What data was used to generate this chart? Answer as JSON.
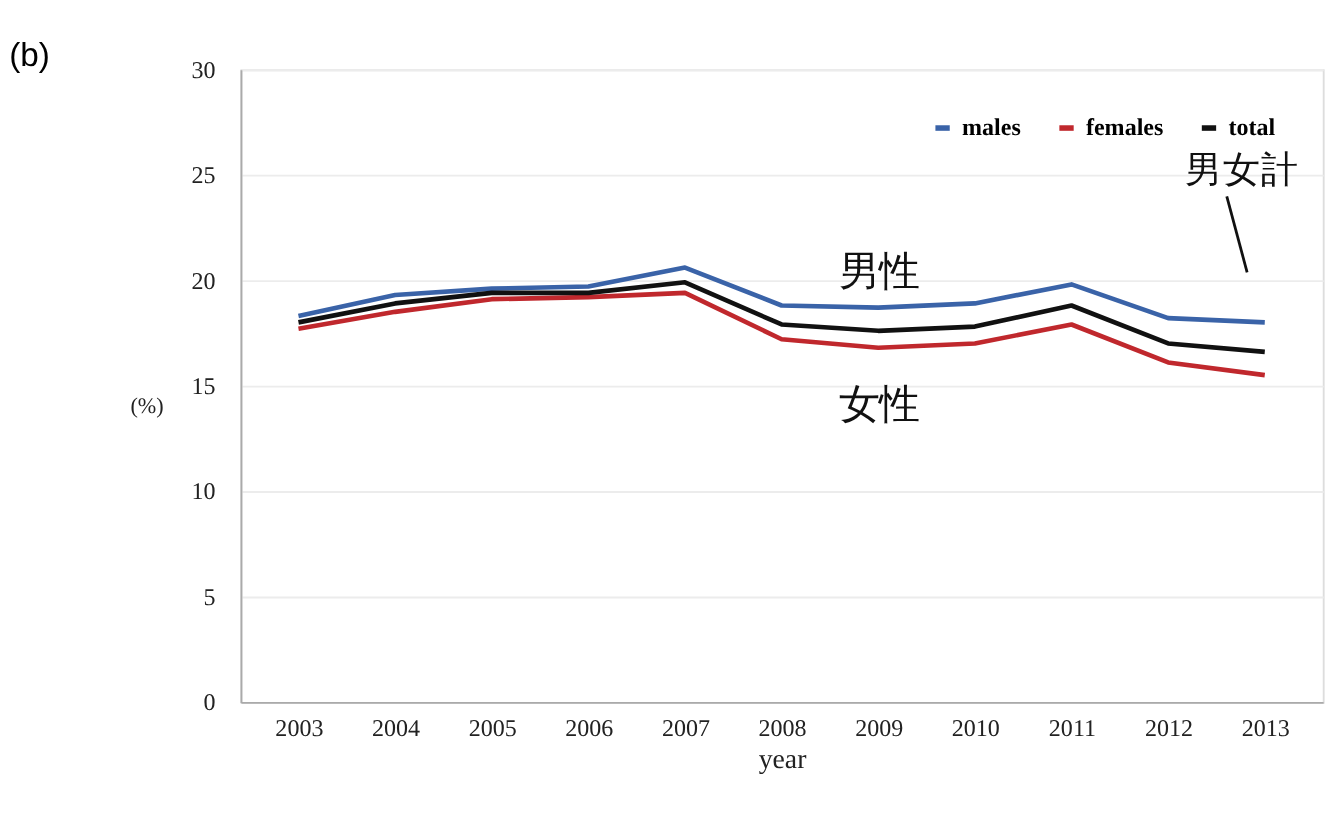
{
  "chart_data": {
    "type": "line",
    "title": "(b)",
    "xlabel": "year",
    "ylabel": "(%)",
    "categories": [
      "2003",
      "2004",
      "2005",
      "2006",
      "2007",
      "2008",
      "2009",
      "2010",
      "2011",
      "2012",
      "2013"
    ],
    "series": [
      {
        "name": "males",
        "color": "#3a63a8",
        "values": [
          18.3,
          19.3,
          19.6,
          19.7,
          20.6,
          18.8,
          18.7,
          18.9,
          19.8,
          18.2,
          18.0
        ]
      },
      {
        "name": "females",
        "color": "#c0282d",
        "values": [
          17.7,
          18.5,
          19.1,
          19.2,
          19.4,
          17.2,
          16.8,
          17.0,
          17.9,
          16.1,
          15.5
        ]
      },
      {
        "name": "total",
        "color": "#111111",
        "values": [
          18.0,
          18.9,
          19.4,
          19.4,
          19.9,
          17.9,
          17.6,
          17.8,
          18.8,
          17.0,
          16.6
        ]
      }
    ],
    "ylim": [
      0,
      30
    ],
    "yticks": [
      0,
      5,
      10,
      15,
      20,
      25,
      30
    ],
    "grid": "y",
    "legend": "top right",
    "marker": "none",
    "line_style": "solid",
    "annotations": [
      "男性",
      "女性",
      "男女計"
    ]
  }
}
